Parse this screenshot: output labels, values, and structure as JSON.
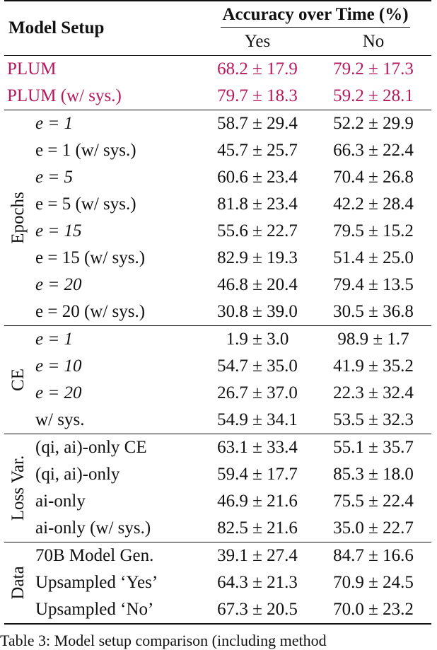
{
  "header": {
    "model_setup": "Model Setup",
    "accuracy": "Accuracy over Time (%)",
    "yes": "Yes",
    "no": "No"
  },
  "plum_rows": [
    {
      "label": "PLUM",
      "yes": "68.2 ± 17.9",
      "no": "79.2 ± 17.3"
    },
    {
      "label": "PLUM (w/ sys.)",
      "yes": "79.7 ± 18.3",
      "no": "59.2 ± 28.1"
    }
  ],
  "groups": {
    "epochs": {
      "name": "Epochs",
      "rows": [
        {
          "label": "e = 1",
          "yes": "58.7 ± 29.4",
          "no": "52.2 ± 29.9"
        },
        {
          "label": "e = 1 (w/ sys.)",
          "yes": "45.7 ± 25.7",
          "no": "66.3 ± 22.4"
        },
        {
          "label": "e = 5",
          "yes": "60.6 ± 23.4",
          "no": "70.4 ± 26.8"
        },
        {
          "label": "e = 5 (w/ sys.)",
          "yes": "81.8 ± 23.4",
          "no": "42.2 ± 28.4"
        },
        {
          "label": "e = 15",
          "yes": "55.6 ± 22.7",
          "no": "79.5 ± 15.2"
        },
        {
          "label": "e = 15 (w/ sys.)",
          "yes": "82.9 ± 19.3",
          "no": "51.4 ± 25.0"
        },
        {
          "label": "e = 20",
          "yes": "46.8 ± 20.4",
          "no": "79.4 ± 13.5"
        },
        {
          "label": "e = 20 (w/ sys.)",
          "yes": "30.8 ± 39.0",
          "no": "30.5 ± 36.8"
        }
      ]
    },
    "ce": {
      "name": "CE",
      "rows": [
        {
          "label": "e = 1",
          "yes": "1.9 ± 3.0",
          "no": "98.9 ± 1.7"
        },
        {
          "label": "e = 10",
          "yes": "54.7 ± 35.0",
          "no": "41.9 ± 35.2"
        },
        {
          "label": "e = 20",
          "yes": "26.7 ± 37.0",
          "no": "22.3 ± 32.4"
        },
        {
          "label": "w/ sys.",
          "yes": "54.9 ± 34.1",
          "no": "53.5 ± 32.3"
        }
      ]
    },
    "loss": {
      "name": "Loss Var.",
      "rows": [
        {
          "label": "(qi, ai)-only CE",
          "yes": "63.1 ± 33.4",
          "no": "55.1 ± 35.7"
        },
        {
          "label": "(qi, ai)-only",
          "yes": "59.4 ± 17.7",
          "no": "85.3 ± 18.0"
        },
        {
          "label": "ai-only",
          "yes": "46.9 ± 21.6",
          "no": "75.5 ± 22.4"
        },
        {
          "label": "ai-only (w/ sys.)",
          "yes": "82.5 ± 21.6",
          "no": "35.0 ± 22.7"
        }
      ]
    },
    "data": {
      "name": "Data",
      "rows": [
        {
          "label": "70B Model Gen.",
          "yes": "39.1 ± 27.4",
          "no": "84.7 ± 16.6"
        },
        {
          "label": "Upsampled ‘Yes’",
          "yes": "64.3 ± 21.3",
          "no": "70.9 ± 24.5"
        },
        {
          "label": "Upsampled ‘No’",
          "yes": "67.3 ± 20.5",
          "no": "70.0 ± 23.2"
        }
      ]
    }
  },
  "caption": "Table 3: Model setup comparison (including method"
}
